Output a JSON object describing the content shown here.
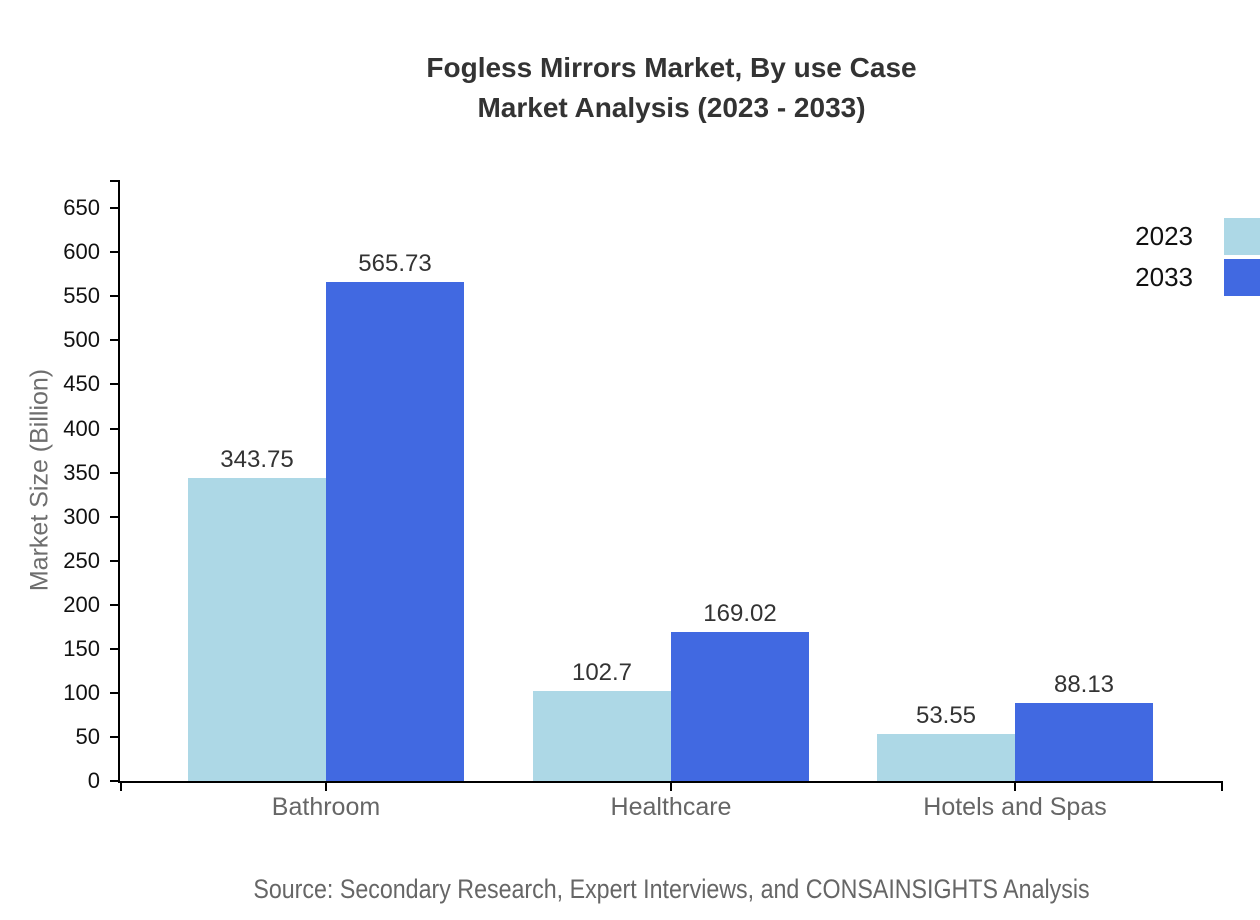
{
  "chart_data": {
    "type": "bar",
    "title_line1": "Fogless Mirrors Market, By use Case",
    "title_line2": "Market Analysis (2023 - 2033)",
    "ylabel": "Market Size (Billion)",
    "categories": [
      "Bathroom",
      "Healthcare",
      "Hotels and Spas"
    ],
    "series": [
      {
        "name": "2023",
        "color": "#ADD8E6",
        "values": [
          343.75,
          102.7,
          53.55
        ]
      },
      {
        "name": "2033",
        "color": "#4169E1",
        "values": [
          565.73,
          169.02,
          88.13
        ]
      }
    ],
    "value_labels": [
      [
        "343.75",
        "102.7",
        "53.55"
      ],
      [
        "565.73",
        "169.02",
        "88.13"
      ]
    ],
    "yticks": [
      0,
      50,
      100,
      150,
      200,
      250,
      300,
      350,
      400,
      450,
      500,
      550,
      600,
      650
    ],
    "ylim": [
      0,
      682
    ],
    "grid": false,
    "legend_position": "top-right",
    "axis_color": "#000000",
    "title_color": "#333333",
    "source": "Source: Secondary Research, Expert Interviews, and CONSAINSIGHTS Analysis"
  }
}
